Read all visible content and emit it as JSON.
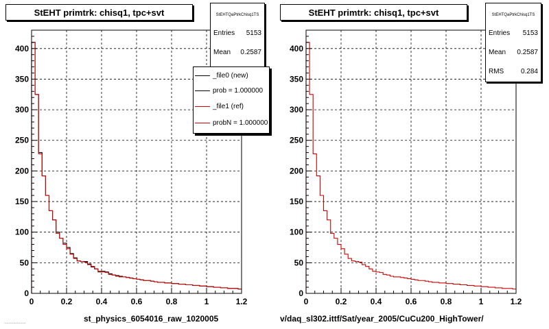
{
  "footer_text": "...................",
  "panels": [
    {
      "title": "StEHT primtrk: chisq1, tpc+svt",
      "xlabel": "st_physics_6054016_raw_1020005",
      "stats": {
        "title": "StEHTQaPtrkChisq1TS",
        "entries_label": "Entries",
        "entries": "5153",
        "mean_label": "Mean",
        "mean": "0.2587"
      },
      "legend": [
        {
          "label": "_file0 (new)",
          "color": "#000000"
        },
        {
          "label": "prob = 1.000000",
          "color": "#000000"
        },
        {
          "label": "_file1 (ref)",
          "color": "#cc0000"
        },
        {
          "label": "probN = 1.000000",
          "color": "#cc0000"
        }
      ]
    },
    {
      "title": "StEHT primtrk: chisq1, tpc+svt",
      "xlabel": "v/daq_sl302.ittf/Sat/year_2005/CuCu200_HighTower/",
      "stats": {
        "title": "StEHTQaPtrkChisq1TS",
        "entries_label": "Entries",
        "entries": "5153",
        "mean_label": "Mean",
        "mean": "0.2587",
        "rms_label": "RMS",
        "rms": "0.284"
      }
    }
  ],
  "chart_data": [
    {
      "type": "histogram",
      "title": "StEHT primtrk: chisq1, tpc+svt",
      "xlabel": "st_physics_6054016_raw_1020005",
      "ylabel": "",
      "xlim": [
        0,
        1.2
      ],
      "ylim": [
        0,
        430
      ],
      "grid": true,
      "legend_position": "top-right",
      "x_ticks": [
        0,
        0.2,
        0.4,
        0.6,
        0.8,
        1,
        1.2
      ],
      "x_tick_labels": [
        "0",
        "0.2",
        "0.4",
        "0.6",
        "0.8",
        "1",
        "1.2"
      ],
      "y_ticks": [
        0,
        50,
        100,
        150,
        200,
        250,
        300,
        350,
        400
      ],
      "bin_edges_start": 0,
      "bin_width": 0.02,
      "series": [
        {
          "name": "_file0 (new)",
          "color": "#000000",
          "values": [
            410,
            325,
            230,
            192,
            160,
            135,
            120,
            100,
            90,
            82,
            75,
            65,
            58,
            53,
            52,
            52,
            48,
            43,
            40,
            35,
            36,
            35,
            32,
            30,
            29,
            28,
            27,
            26,
            25,
            24,
            23,
            22,
            21,
            21,
            20,
            19,
            18,
            18,
            17,
            17,
            16,
            16,
            15,
            15,
            14,
            14,
            13,
            13,
            12,
            12,
            11,
            11,
            10,
            10,
            9,
            9,
            8,
            8,
            8,
            7
          ]
        },
        {
          "name": "_file1 (ref)",
          "color": "#cc0000",
          "values": [
            410,
            325,
            228,
            192,
            160,
            135,
            120,
            98,
            90,
            80,
            73,
            64,
            57,
            53,
            52,
            51,
            47,
            44,
            40,
            36,
            35,
            34,
            31,
            30,
            28,
            27,
            27,
            26,
            25,
            24,
            23,
            22,
            21,
            21,
            20,
            19,
            18,
            18,
            17,
            17,
            16,
            16,
            15,
            15,
            14,
            14,
            13,
            13,
            12,
            12,
            11,
            11,
            10,
            10,
            9,
            9,
            8,
            8,
            8,
            7
          ]
        }
      ]
    },
    {
      "type": "histogram",
      "title": "StEHT primtrk: chisq1, tpc+svt",
      "xlabel": "v/daq_sl302.ittf/Sat/year_2005/CuCu200_HighTower/",
      "ylabel": "",
      "xlim": [
        0,
        1.2
      ],
      "ylim": [
        0,
        430
      ],
      "grid": true,
      "x_ticks": [
        0,
        0.2,
        0.4,
        0.6,
        0.8,
        1,
        1.2
      ],
      "x_tick_labels": [
        "0",
        "0.2",
        "0.4",
        "0.6",
        "0.8",
        "1",
        "1.2"
      ],
      "y_ticks": [
        0,
        50,
        100,
        150,
        200,
        250,
        300,
        350,
        400
      ],
      "bin_edges_start": 0,
      "bin_width": 0.02,
      "series": [
        {
          "name": "",
          "color": "#cc0000",
          "values": [
            410,
            325,
            228,
            192,
            160,
            135,
            120,
            98,
            90,
            80,
            73,
            64,
            57,
            53,
            52,
            51,
            47,
            44,
            40,
            36,
            35,
            34,
            31,
            30,
            28,
            27,
            27,
            26,
            25,
            24,
            23,
            22,
            21,
            21,
            20,
            19,
            18,
            18,
            17,
            17,
            16,
            16,
            15,
            15,
            14,
            14,
            13,
            13,
            12,
            12,
            11,
            11,
            10,
            10,
            9,
            9,
            8,
            8,
            8,
            7
          ]
        }
      ]
    }
  ]
}
